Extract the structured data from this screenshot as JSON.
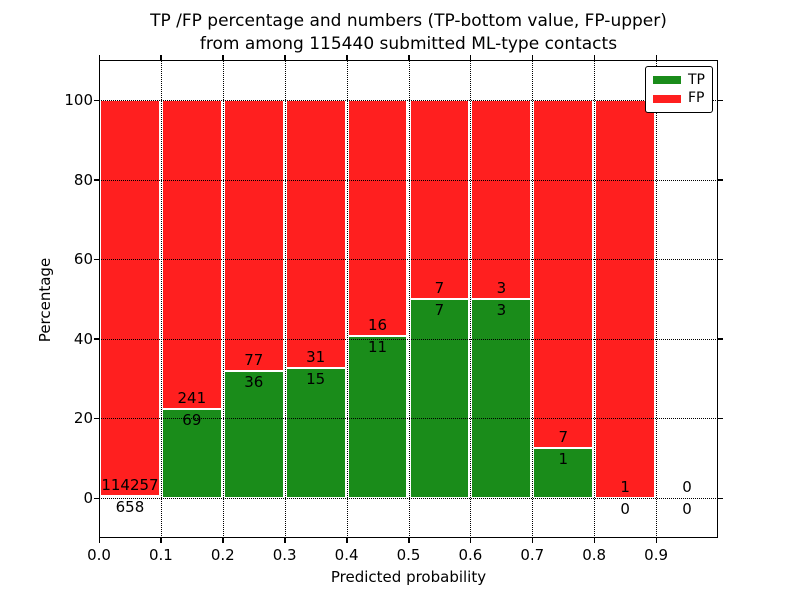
{
  "chart_data": {
    "type": "bar",
    "subtype": "stacked-percentage-histogram",
    "title_line1": "TP /FP percentage and numbers (TP-bottom value, FP-upper)",
    "title_line2": "from among 115440 submitted ML-type contacts",
    "xlabel": "Predicted probability",
    "ylabel": "Percentage",
    "x_tick_labels": [
      "0.0",
      "0.1",
      "0.2",
      "0.3",
      "0.4",
      "0.5",
      "0.6",
      "0.7",
      "0.8",
      "0.9"
    ],
    "y_tick_values": [
      0,
      20,
      40,
      60,
      80,
      100
    ],
    "xlim": [
      0.0,
      1.0
    ],
    "ylim": [
      -10,
      110
    ],
    "grid": "dotted",
    "legend_position": "upper-right",
    "legend": [
      {
        "label": "TP",
        "color": "#1a8c1a"
      },
      {
        "label": "FP",
        "color": "#ff1f1f"
      }
    ],
    "colors": {
      "tp": "#1a8c1a",
      "fp": "#ff1f1f",
      "background": "#ffffff",
      "grid": "#000000"
    },
    "bins": [
      {
        "range": [
          0.0,
          0.1
        ],
        "tp": 658,
        "fp": 114257,
        "tp_label": "658",
        "fp_label": "114257",
        "tp_pct": 0.573
      },
      {
        "range": [
          0.1,
          0.2
        ],
        "tp": 69,
        "fp": 241,
        "tp_label": "69",
        "fp_label": "241",
        "tp_pct": 22.258
      },
      {
        "range": [
          0.2,
          0.3
        ],
        "tp": 36,
        "fp": 77,
        "tp_label": "36",
        "fp_label": "77",
        "tp_pct": 31.858
      },
      {
        "range": [
          0.3,
          0.4
        ],
        "tp": 15,
        "fp": 31,
        "tp_label": "15",
        "fp_label": "31",
        "tp_pct": 32.609
      },
      {
        "range": [
          0.4,
          0.5
        ],
        "tp": 11,
        "fp": 16,
        "tp_label": "11",
        "fp_label": "16",
        "tp_pct": 40.741
      },
      {
        "range": [
          0.5,
          0.6
        ],
        "tp": 7,
        "fp": 7,
        "tp_label": "7",
        "fp_label": "7",
        "tp_pct": 50.0
      },
      {
        "range": [
          0.6,
          0.7
        ],
        "tp": 3,
        "fp": 3,
        "tp_label": "3",
        "fp_label": "3",
        "tp_pct": 50.0
      },
      {
        "range": [
          0.7,
          0.8
        ],
        "tp": 1,
        "fp": 7,
        "tp_label": "1",
        "fp_label": "7",
        "tp_pct": 12.5
      },
      {
        "range": [
          0.8,
          0.9
        ],
        "tp": 0,
        "fp": 1,
        "tp_label": "0",
        "fp_label": "1",
        "tp_pct": 0.0
      },
      {
        "range": [
          0.9,
          1.0
        ],
        "tp": 0,
        "fp": 0,
        "tp_label": "0",
        "fp_label": "0",
        "tp_pct": null
      }
    ]
  }
}
